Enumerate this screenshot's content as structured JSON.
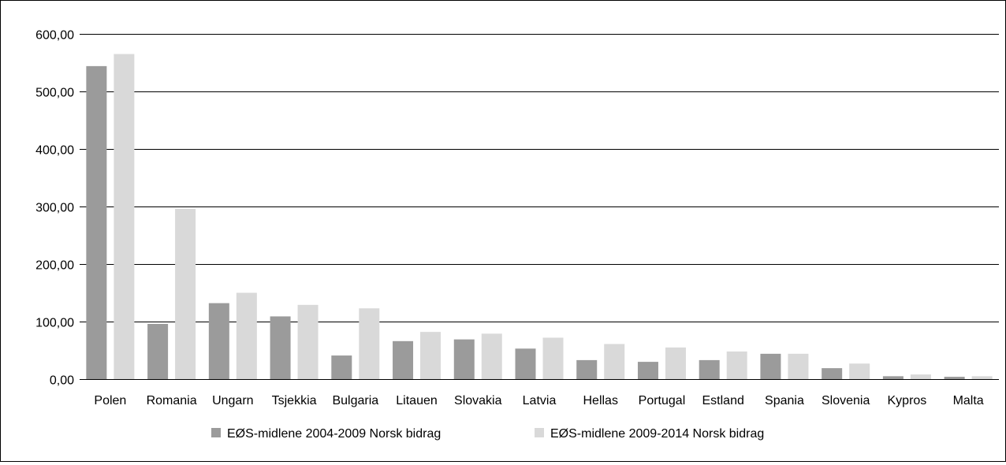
{
  "chart_data": {
    "type": "bar",
    "title": "",
    "xlabel": "",
    "ylabel": "",
    "categories": [
      "Polen",
      "Romania",
      "Ungarn",
      "Tsjekkia",
      "Bulgaria",
      "Litauen",
      "Slovakia",
      "Latvia",
      "Hellas",
      "Portugal",
      "Estland",
      "Spania",
      "Slovenia",
      "Kypros",
      "Malta"
    ],
    "series": [
      {
        "name": "EØS-midlene 2004-2009 Norsk bidrag",
        "color": "#9b9b9b",
        "values": [
          544,
          96,
          132,
          109,
          41,
          66,
          69,
          53,
          33,
          30,
          33,
          44,
          19,
          5,
          4
        ]
      },
      {
        "name": "EØS-midlene 2009-2014 Norsk bidrag",
        "color": "#d9d9d9",
        "values": [
          565,
          296,
          150,
          129,
          123,
          82,
          79,
          72,
          61,
          55,
          48,
          44,
          27,
          8,
          5
        ]
      }
    ],
    "ylim": [
      0,
      600
    ],
    "yticks": [
      0,
      100,
      200,
      300,
      400,
      500,
      600
    ],
    "ytick_labels": [
      "0,00",
      "100,00",
      "200,00",
      "300,00",
      "400,00",
      "500,00",
      "600,00"
    ],
    "grid": true,
    "legend_position": "bottom"
  }
}
